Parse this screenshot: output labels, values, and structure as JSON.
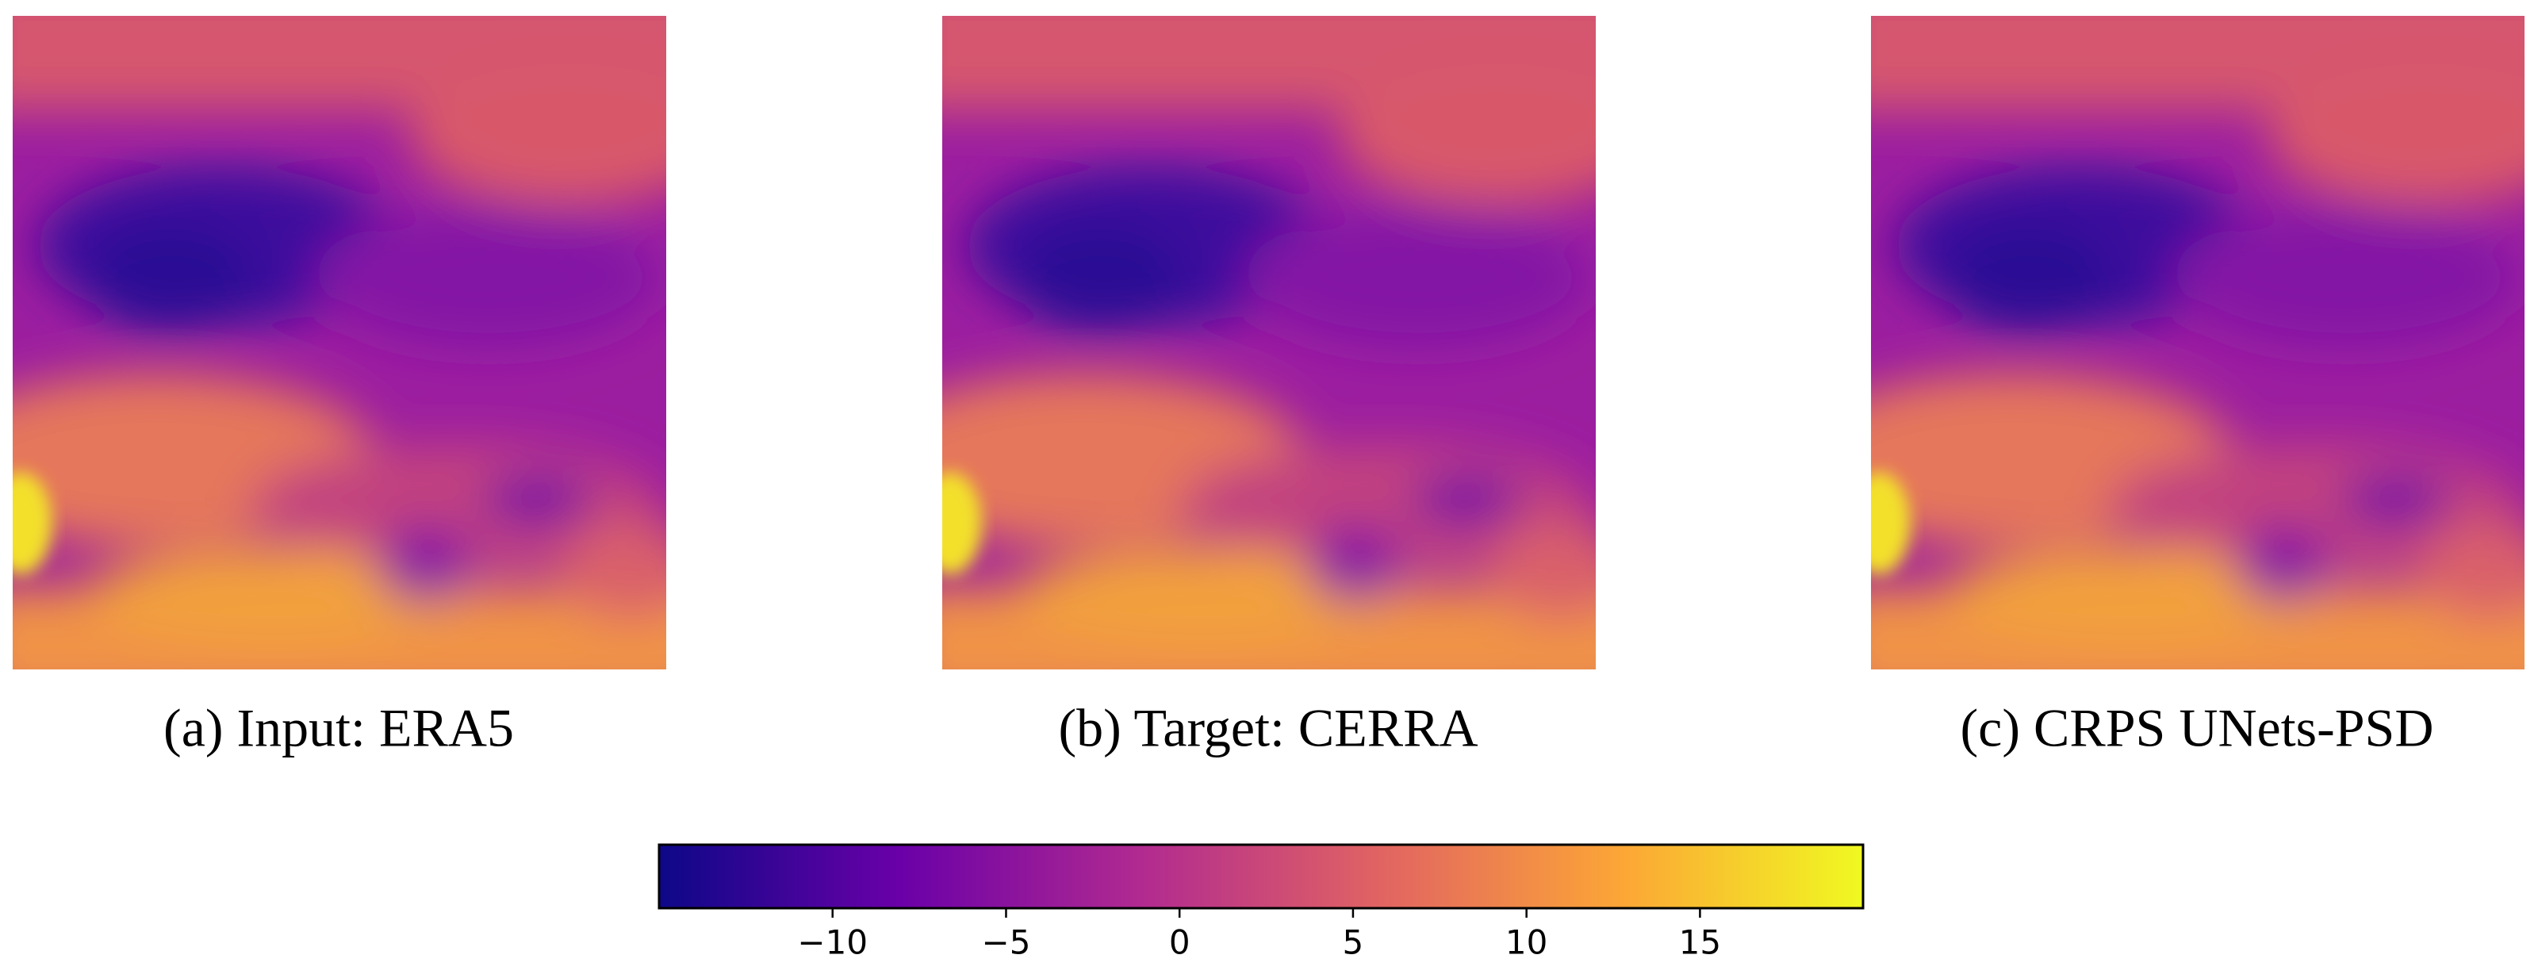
{
  "panels": [
    {
      "caption": "(a) Input: ERA5"
    },
    {
      "caption": "(b) Target: CERRA"
    },
    {
      "caption": "(c) CRPS UNets-PSD"
    }
  ],
  "chart_data": {
    "type": "colorbar",
    "colors": [
      "#0d0887",
      "#6a00a8",
      "#b12a90",
      "#e16462",
      "#fca636",
      "#f0f921"
    ],
    "xlim": [
      -15,
      19.7
    ],
    "xticks": [
      {
        "value": -10,
        "label": "−10"
      },
      {
        "value": -5,
        "label": "−5"
      },
      0,
      5,
      10,
      15
    ]
  }
}
